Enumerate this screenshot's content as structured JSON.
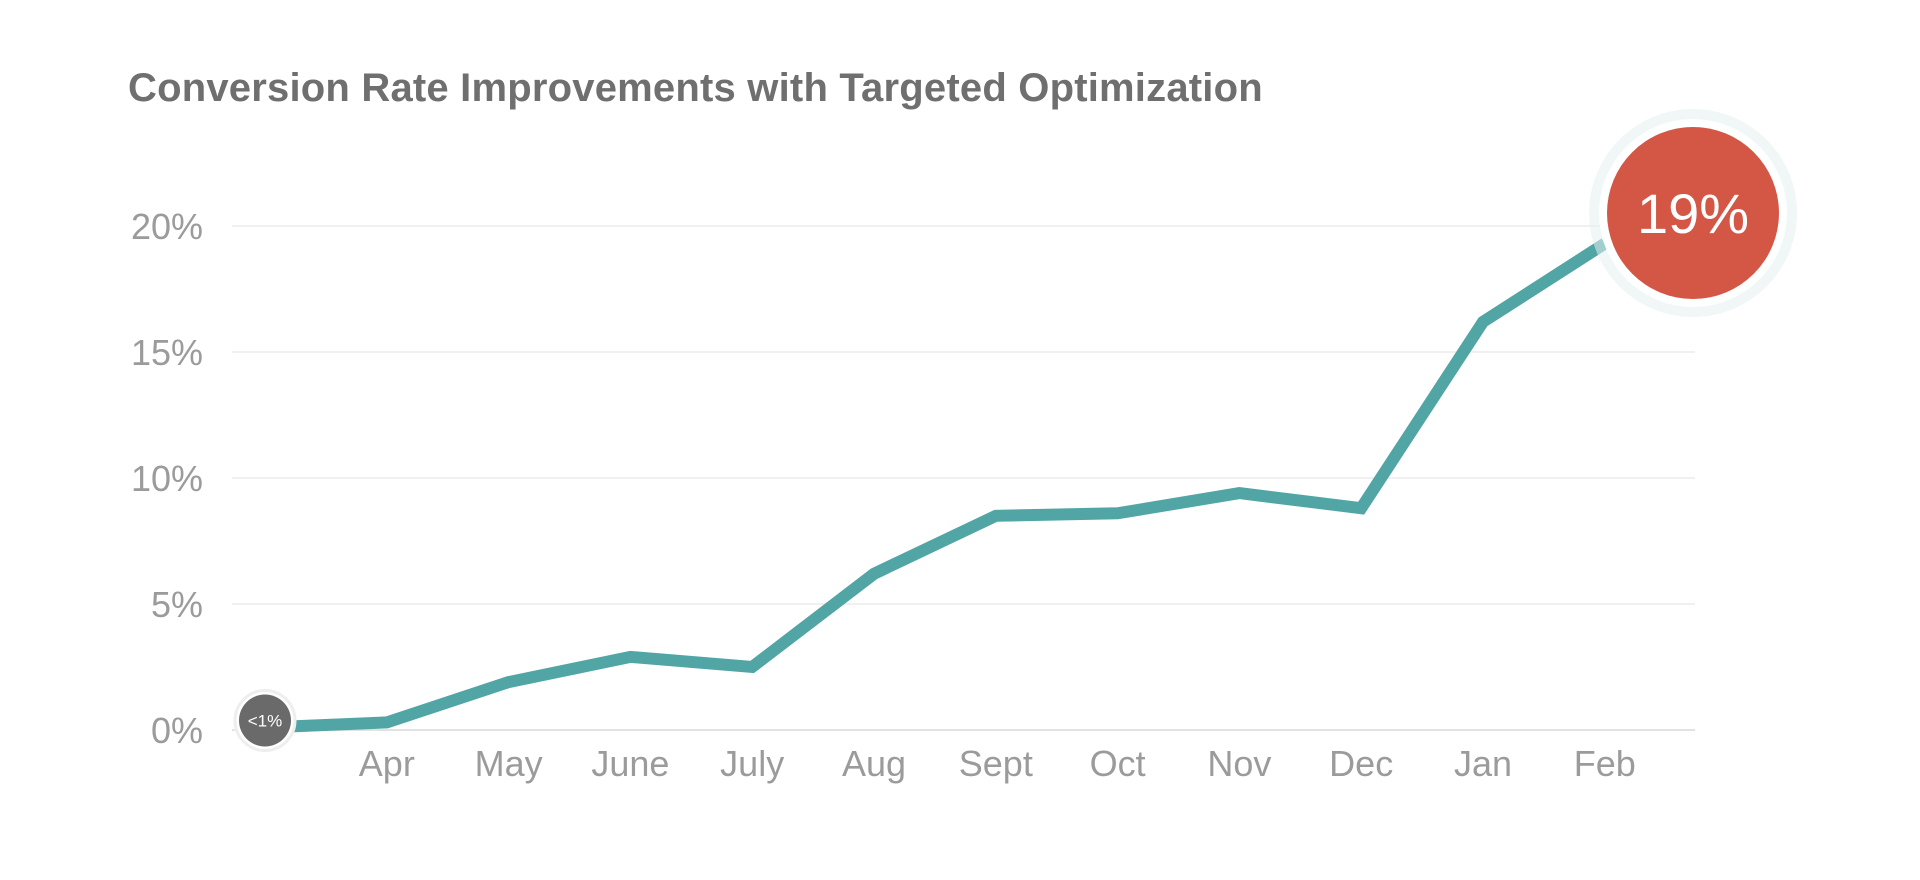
{
  "chart_data": {
    "type": "line",
    "title": "Conversion Rate Improvements with Targeted Optimization",
    "xlabel": "",
    "ylabel": "",
    "x": [
      "",
      "Apr",
      "May",
      "June",
      "July",
      "Aug",
      "Sept",
      "Oct",
      "Nov",
      "Dec",
      "Jan",
      "Feb"
    ],
    "series": [
      {
        "values": [
          0.1,
          0.3,
          1.9,
          2.9,
          2.5,
          6.2,
          8.5,
          8.6,
          9.4,
          8.8,
          16.2,
          19.3
        ]
      }
    ],
    "y_ticks": [
      "0%",
      "5%",
      "10%",
      "15%",
      "20%"
    ],
    "ylim": [
      0,
      20
    ],
    "grid": true,
    "legend": "none",
    "annotations": {
      "start": "<1%",
      "end": "19%"
    },
    "colors": {
      "line": "#52a5a5",
      "start_badge": "#6a6a6a",
      "end_badge": "#d45644",
      "end_badge_halo": "#e6f1f1"
    }
  }
}
